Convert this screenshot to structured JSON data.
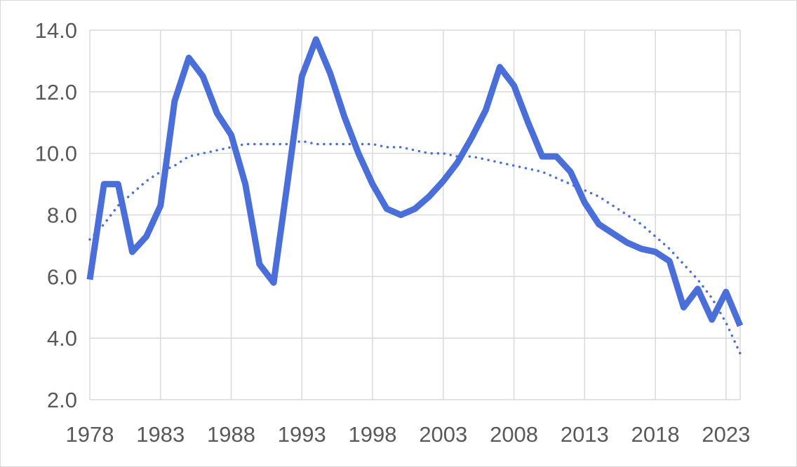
{
  "chart_data": {
    "type": "line",
    "title": "",
    "xlabel": "",
    "ylabel": "",
    "x": [
      1978,
      1979,
      1980,
      1981,
      1982,
      1983,
      1984,
      1985,
      1986,
      1987,
      1988,
      1989,
      1990,
      1991,
      1992,
      1993,
      1994,
      1995,
      1996,
      1997,
      1998,
      1999,
      2000,
      2001,
      2002,
      2003,
      2004,
      2005,
      2006,
      2007,
      2008,
      2009,
      2010,
      2011,
      2012,
      2013,
      2014,
      2015,
      2016,
      2017,
      2018,
      2019,
      2020,
      2021,
      2022,
      2023,
      2024
    ],
    "series": [
      {
        "values": [
          5.9,
          9.0,
          9.0,
          6.8,
          7.3,
          8.3,
          11.7,
          13.1,
          12.5,
          11.3,
          10.6,
          9.0,
          6.4,
          5.8,
          9.1,
          12.5,
          13.7,
          12.6,
          11.2,
          10.0,
          9.0,
          8.2,
          8.0,
          8.2,
          8.6,
          9.1,
          9.7,
          10.5,
          11.4,
          12.8,
          12.2,
          11.0,
          9.9,
          9.9,
          9.4,
          8.4,
          7.7,
          7.4,
          7.1,
          6.9,
          6.8,
          6.5,
          5.0,
          5.6,
          4.6,
          5.5,
          4.4
        ],
        "color": "#4a6fd8",
        "style": "solid"
      }
    ],
    "trendline": {
      "type": "polynomial",
      "style": "dotted",
      "color": "#4a6fd8",
      "values": [
        7.2,
        7.7,
        8.3,
        8.7,
        9.1,
        9.4,
        9.6,
        9.9,
        10.0,
        10.1,
        10.2,
        10.3,
        10.3,
        10.3,
        10.3,
        10.4,
        10.3,
        10.3,
        10.3,
        10.3,
        10.3,
        10.2,
        10.2,
        10.1,
        10.0,
        10.0,
        9.9,
        9.9,
        9.8,
        9.7,
        9.6,
        9.5,
        9.4,
        9.2,
        9.0,
        8.8,
        8.6,
        8.3,
        8.0,
        7.7,
        7.3,
        6.9,
        6.4,
        5.9,
        5.3,
        4.5,
        3.5
      ]
    },
    "xlim": [
      1978,
      2024
    ],
    "ylim": [
      2.0,
      14.0
    ],
    "x_ticks": [
      "1978",
      "1983",
      "1988",
      "1993",
      "1998",
      "2003",
      "2008",
      "2013",
      "2018",
      "2023"
    ],
    "y_ticks": [
      "2.0",
      "4.0",
      "6.0",
      "8.0",
      "10.0",
      "12.0",
      "14.0"
    ],
    "grid": true,
    "legend": "none"
  }
}
